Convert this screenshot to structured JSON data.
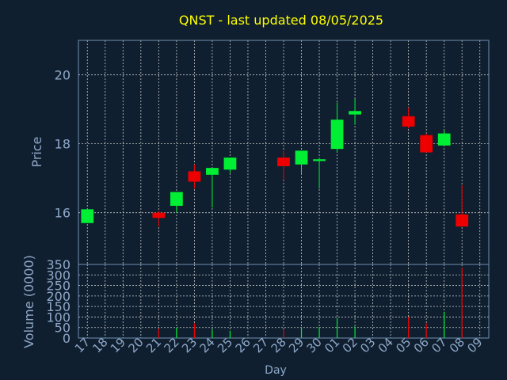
{
  "chart_data": [
    {
      "type": "candlestick",
      "title": "QNST - last updated 08/05/2025",
      "ylabel": "Price",
      "ylim": [
        14.5,
        21.0
      ],
      "yticks": [
        16,
        18,
        20
      ],
      "grid": true,
      "x_ticks": [
        "17",
        "18",
        "19",
        "20",
        "21",
        "22",
        "23",
        "24",
        "25",
        "26",
        "27",
        "28",
        "29",
        "30",
        "01",
        "02",
        "03",
        "04",
        "05",
        "06",
        "07",
        "08",
        "09"
      ],
      "candles": [
        {
          "day": "17",
          "open": 15.7,
          "high": 16.1,
          "low": 15.7,
          "close": 16.1
        },
        {
          "day": "21",
          "open": 16.0,
          "high": 16.05,
          "low": 15.6,
          "close": 15.85
        },
        {
          "day": "22",
          "open": 16.2,
          "high": 16.6,
          "low": 16.0,
          "close": 16.6
        },
        {
          "day": "23",
          "open": 17.2,
          "high": 17.4,
          "low": 16.7,
          "close": 16.9
        },
        {
          "day": "24",
          "open": 17.1,
          "high": 17.3,
          "low": 16.15,
          "close": 17.3
        },
        {
          "day": "25",
          "open": 17.25,
          "high": 17.6,
          "low": 17.15,
          "close": 17.6
        },
        {
          "day": "28",
          "open": 17.6,
          "high": 17.8,
          "low": 16.95,
          "close": 17.35
        },
        {
          "day": "29",
          "open": 17.4,
          "high": 17.8,
          "low": 17.1,
          "close": 17.8
        },
        {
          "day": "30",
          "open": 17.5,
          "high": 17.6,
          "low": 16.7,
          "close": 17.55
        },
        {
          "day": "01",
          "open": 17.85,
          "high": 19.2,
          "low": 17.75,
          "close": 18.7
        },
        {
          "day": "02",
          "open": 18.85,
          "high": 19.3,
          "low": 18.55,
          "close": 18.95
        },
        {
          "day": "05",
          "open": 18.8,
          "high": 19.05,
          "low": 18.45,
          "close": 18.5
        },
        {
          "day": "06",
          "open": 18.25,
          "high": 18.3,
          "low": 17.75,
          "close": 17.75
        },
        {
          "day": "07",
          "open": 17.95,
          "high": 18.4,
          "low": 17.95,
          "close": 18.3
        },
        {
          "day": "08",
          "open": 15.95,
          "high": 16.8,
          "low": 15.6,
          "close": 15.6
        }
      ]
    },
    {
      "type": "bar",
      "ylabel": "Volume (0000)",
      "xlabel": "Day",
      "ylim": [
        0,
        350
      ],
      "yticks": [
        0,
        50,
        100,
        150,
        200,
        250,
        300,
        350
      ],
      "categories": [
        "21",
        "22",
        "23",
        "24",
        "25",
        "28",
        "29",
        "30",
        "01",
        "02",
        "05",
        "06",
        "07",
        "08"
      ],
      "values": [
        45,
        50,
        70,
        40,
        35,
        40,
        48,
        52,
        95,
        55,
        100,
        70,
        125,
        335
      ]
    }
  ],
  "colors": {
    "background": "#0f1f2f",
    "axis": "#6f8fb0",
    "grid": "#c8c8c8",
    "title": "#ffff00",
    "text": "#8fa8c8",
    "up": "#00ee33",
    "down": "#ee0000"
  }
}
